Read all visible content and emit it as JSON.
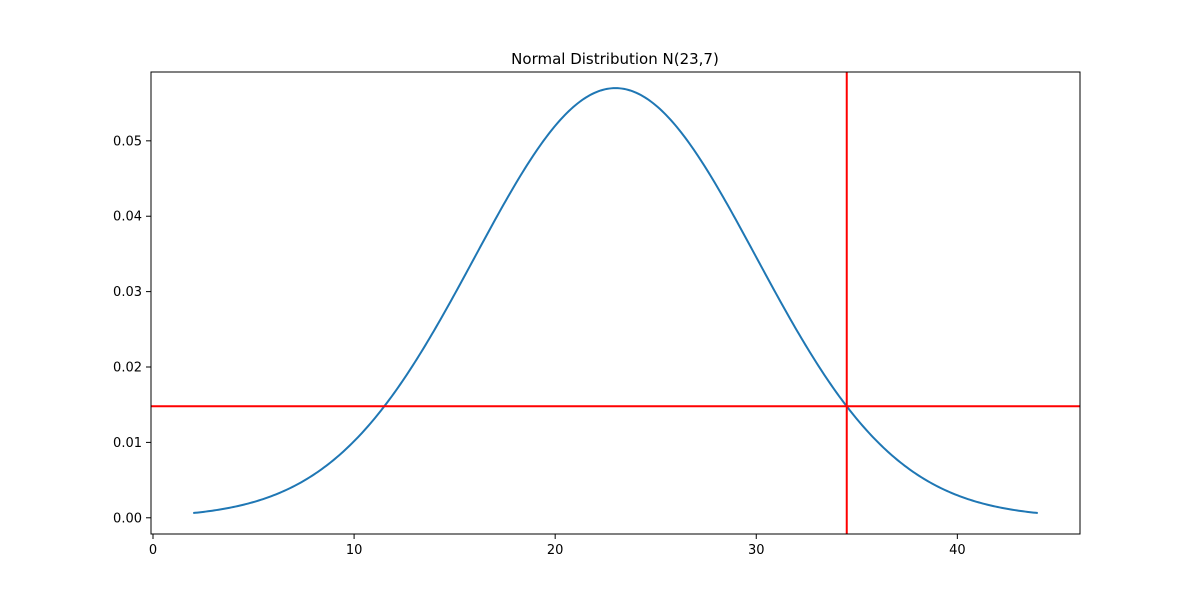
{
  "chart_data": {
    "type": "line",
    "title": "Normal Distribution N(23,7)",
    "xlabel": "",
    "ylabel": "",
    "xlim": [
      -0.1,
      46.1
    ],
    "ylim": [
      -0.00215,
      0.05913
    ],
    "xticks": [
      0,
      10,
      20,
      30,
      40
    ],
    "xtick_labels": [
      "0",
      "10",
      "20",
      "30",
      "40"
    ],
    "yticks": [
      0.0,
      0.01,
      0.02,
      0.03,
      0.04,
      0.05
    ],
    "ytick_labels": [
      "0.00",
      "0.01",
      "0.02",
      "0.03",
      "0.04",
      "0.05"
    ],
    "grid": false,
    "series": [
      {
        "mean": 23,
        "std": 7,
        "x_range": [
          2,
          44
        ],
        "color": "#1f77b4"
      }
    ],
    "reference_lines": [
      {
        "orientation": "vertical",
        "x": 34.5,
        "color": "#ff0000"
      },
      {
        "orientation": "horizontal",
        "y": 0.0148,
        "color": "#ff0000"
      }
    ]
  }
}
